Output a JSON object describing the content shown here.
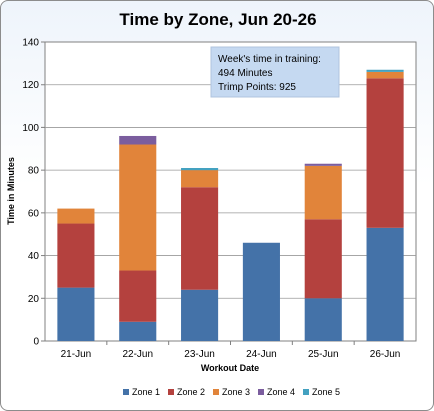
{
  "chart_data": {
    "type": "bar",
    "stacked": true,
    "title": "Time by Zone, Jun 20-26",
    "xlabel": "Workout Date",
    "ylabel": "Time in Minutes",
    "ylim": [
      0,
      140
    ],
    "yticks": [
      0,
      20,
      40,
      60,
      80,
      100,
      120,
      140
    ],
    "grid": true,
    "legend_position": "bottom",
    "categories": [
      "21-Jun",
      "22-Jun",
      "23-Jun",
      "24-Jun",
      "25-Jun",
      "26-Jun"
    ],
    "series": [
      {
        "name": "Zone 1",
        "color": "#4472a8",
        "values": [
          25,
          9,
          24,
          46,
          20,
          53
        ]
      },
      {
        "name": "Zone 2",
        "color": "#b4413e",
        "values": [
          30,
          24,
          48,
          0,
          37,
          70
        ]
      },
      {
        "name": "Zone 3",
        "color": "#e1843a",
        "values": [
          7,
          59,
          8,
          0,
          25,
          3
        ]
      },
      {
        "name": "Zone 4",
        "color": "#7b5d9e",
        "values": [
          0,
          4,
          0,
          0,
          1,
          0
        ]
      },
      {
        "name": "Zone 5",
        "color": "#43a1c0",
        "values": [
          0,
          0,
          1,
          0,
          0,
          1
        ]
      }
    ],
    "annotation": {
      "lines": [
        "Week's time in training:",
        "494 Minutes",
        "Trimp Points:  925"
      ]
    }
  }
}
